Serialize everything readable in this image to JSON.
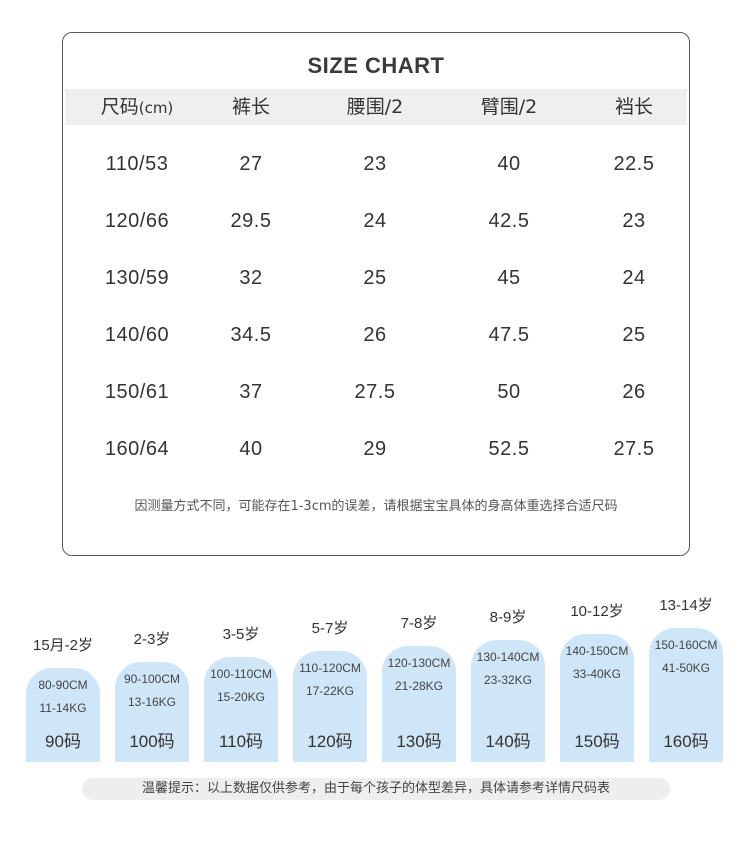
{
  "size_chart": {
    "title": "SIZE CHART",
    "headers": {
      "size": "尺码",
      "size_unit": "(cm)",
      "pants_length": "裤长",
      "waist": "腰围/2",
      "arm": "臂围/2",
      "sleeve": "裆长"
    },
    "rows": [
      {
        "size": "110/53",
        "pants_length": "27",
        "waist": "23",
        "arm": "40",
        "sleeve": "22.5"
      },
      {
        "size": "120/66",
        "pants_length": "29.5",
        "waist": "24",
        "arm": "42.5",
        "sleeve": "23"
      },
      {
        "size": "130/59",
        "pants_length": "32",
        "waist": "25",
        "arm": "45",
        "sleeve": "24"
      },
      {
        "size": "140/60",
        "pants_length": "34.5",
        "waist": "26",
        "arm": "47.5",
        "sleeve": "25"
      },
      {
        "size": "150/61",
        "pants_length": "37",
        "waist": "27.5",
        "arm": "50",
        "sleeve": "26"
      },
      {
        "size": "160/64",
        "pants_length": "40",
        "waist": "29",
        "arm": "52.5",
        "sleeve": "27.5"
      }
    ],
    "note": "因测量方式不同，可能存在1-3cm的误差，请根据宝宝具体的身高体重选择合适尺码"
  },
  "age_guide": [
    {
      "age": "15月-2岁",
      "height": "80-90CM",
      "weight": "11-14KG",
      "code": "90码"
    },
    {
      "age": "2-3岁",
      "height": "90-100CM",
      "weight": "13-16KG",
      "code": "100码"
    },
    {
      "age": "3-5岁",
      "height": "100-110CM",
      "weight": "15-20KG",
      "code": "110码"
    },
    {
      "age": "5-7岁",
      "height": "110-120CM",
      "weight": "17-22KG",
      "code": "120码"
    },
    {
      "age": "7-8岁",
      "height": "120-130CM",
      "weight": "21-28KG",
      "code": "130码"
    },
    {
      "age": "8-9岁",
      "height": "130-140CM",
      "weight": "23-32KG",
      "code": "140码"
    },
    {
      "age": "10-12岁",
      "height": "140-150CM",
      "weight": "33-40KG",
      "code": "150码"
    },
    {
      "age": "13-14岁",
      "height": "150-160CM",
      "weight": "41-50KG",
      "code": "160码"
    }
  ],
  "tip": "温馨提示：以上数据仅供参考，由于每个孩子的体型差异，具体请参考详情尺码表",
  "colors": {
    "tube": "#cfe6f8",
    "border": "#5a5a5a",
    "header_band": "#efefef"
  }
}
